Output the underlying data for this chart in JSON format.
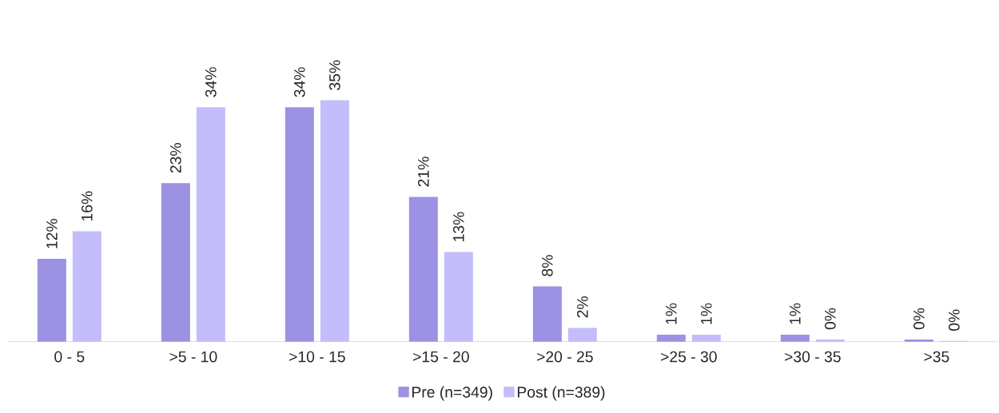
{
  "chart_data": {
    "type": "bar",
    "categories": [
      "0 - 5",
      ">5 - 10",
      ">10 - 15",
      ">15 - 20",
      ">20 - 25",
      ">25 - 30",
      ">30 - 35",
      ">35"
    ],
    "series": [
      {
        "name": "Pre (n=349)",
        "color": "#9b92e3",
        "values": [
          12,
          23,
          34,
          21,
          8,
          1,
          1,
          0.3
        ],
        "value_labels": [
          "12%",
          "23%",
          "34%",
          "21%",
          "8%",
          "1%",
          "1%",
          "0%"
        ]
      },
      {
        "name": "Post (n=389)",
        "color": "#c3bdfc",
        "values": [
          16,
          34,
          35,
          13,
          2,
          1,
          0.3,
          0.1
        ],
        "value_labels": [
          "16%",
          "34%",
          "35%",
          "13%",
          "2%",
          "1%",
          "0%",
          "0%"
        ]
      }
    ],
    "legend": "bottom"
  }
}
